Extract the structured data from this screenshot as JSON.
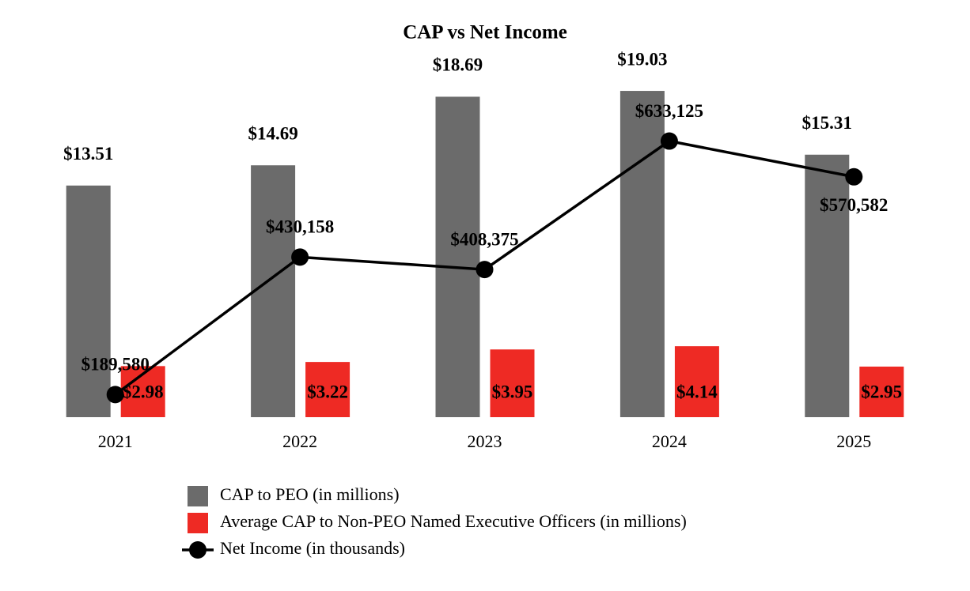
{
  "chart_data": {
    "type": "bar",
    "title": "CAP vs Net Income",
    "categories": [
      "2021",
      "2022",
      "2023",
      "2024",
      "2025"
    ],
    "series": [
      {
        "name": "CAP to PEO (in millions)",
        "color": "#6b6b6b",
        "values": [
          13.51,
          14.69,
          18.69,
          19.03,
          15.31
        ],
        "value_labels": [
          "$13.51",
          "$14.69",
          "$18.69",
          "$19.03",
          "$15.31"
        ]
      },
      {
        "name": "Average CAP to Non-PEO Named Executive Officers (in millions)",
        "color": "#ee2a24",
        "values": [
          2.98,
          3.22,
          3.95,
          4.14,
          2.95
        ],
        "value_labels": [
          "$2.98",
          "$3.22",
          "$3.95",
          "$4.14",
          "$2.95"
        ]
      },
      {
        "name": "Net Income (in thousands)",
        "type": "line",
        "axis": "y2",
        "color": "#000000",
        "values": [
          189580,
          430158,
          408375,
          633125,
          570582
        ],
        "value_labels": [
          "$189,580",
          "$430,158",
          "$408,375",
          "$633,125",
          "$570,582"
        ]
      }
    ],
    "ylim": [
      0,
      20
    ],
    "y2lim": [
      150000,
      750000
    ],
    "grid": false
  }
}
